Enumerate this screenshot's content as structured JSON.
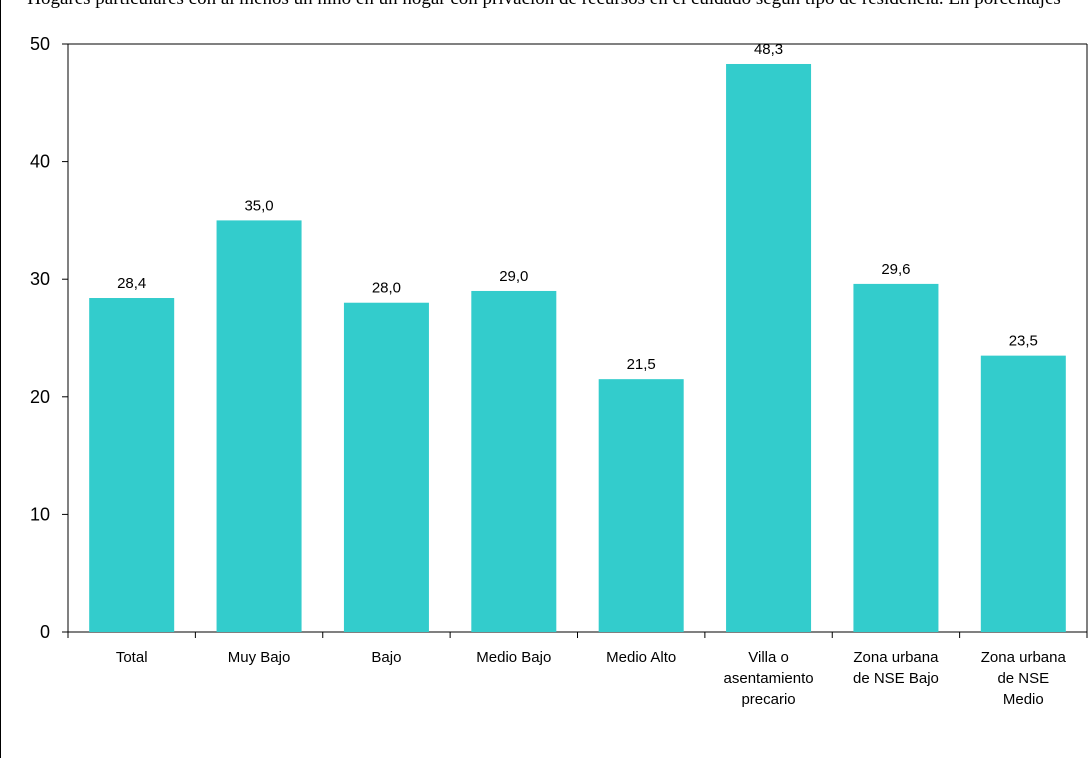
{
  "title": "Hogares particulares con al menos un niño en un hogar con privación de recursos en el cuidado según tipo de residencia. En porcentajes",
  "chart_data": {
    "type": "bar",
    "title": "Hogares particulares con al menos un niño en un hogar con privación de recursos en el cuidado según tipo de residencia. En porcentajes",
    "xlabel": "",
    "ylabel": "",
    "ylim": [
      0,
      50
    ],
    "yticks": [
      0,
      10,
      20,
      30,
      40,
      50
    ],
    "categories": [
      [
        "Total"
      ],
      [
        "Muy Bajo"
      ],
      [
        "Bajo"
      ],
      [
        "Medio Bajo"
      ],
      [
        "Medio Alto"
      ],
      [
        "Villa o",
        "asentamiento",
        "precario"
      ],
      [
        "Zona urbana",
        "de NSE Bajo"
      ],
      [
        "Zona urbana",
        "de NSE",
        "Medio"
      ]
    ],
    "values": [
      28.4,
      35.0,
      28.0,
      29.0,
      21.5,
      48.3,
      29.6,
      23.5
    ],
    "value_labels": [
      "28,4",
      "35,0",
      "28,0",
      "29,0",
      "21,5",
      "48,3",
      "29,6",
      "23,5"
    ],
    "bar_color": "#33cccc",
    "grid": false,
    "legend": "none"
  }
}
